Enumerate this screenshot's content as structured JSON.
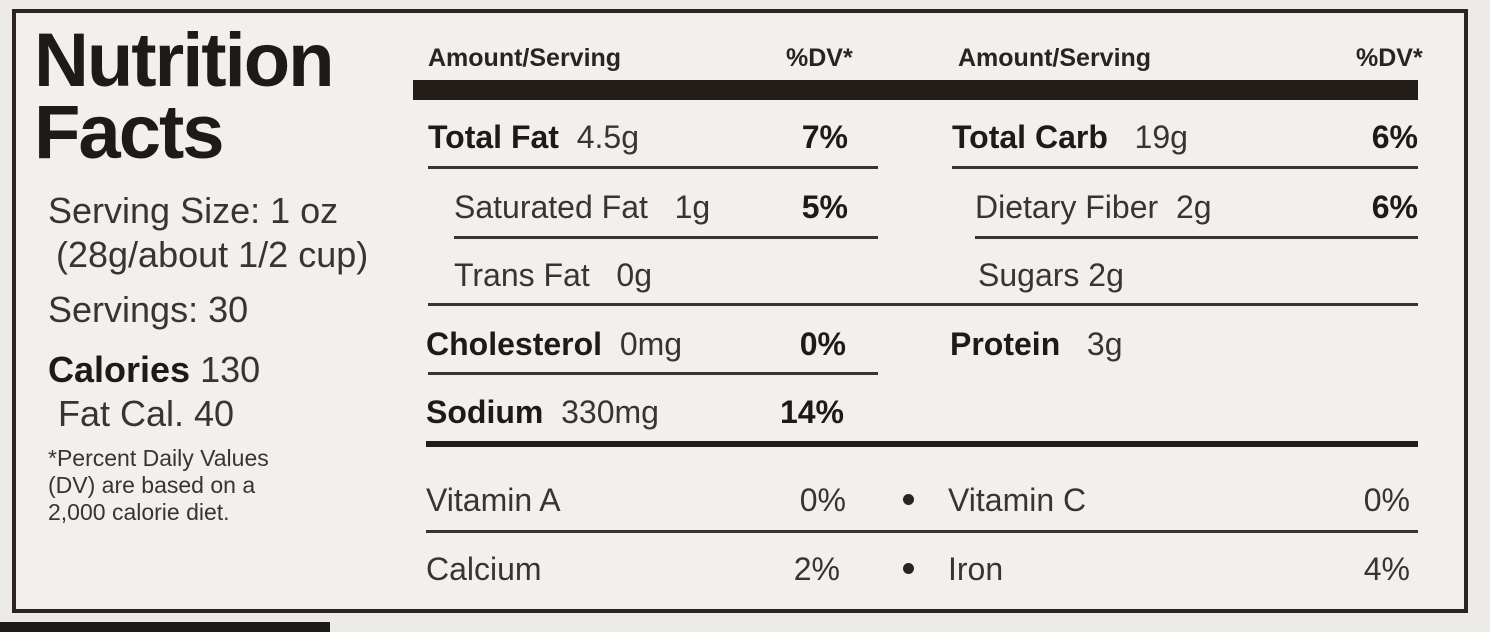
{
  "title_line1": "Nutrition",
  "title_line2": "Facts",
  "serving_size_line1": "Serving Size:  1 oz",
  "serving_size_line2": "(28g/about 1/2 cup)",
  "servings": "Servings: 30",
  "calories_label": "Calories",
  "calories_value": "130",
  "fat_cal": "Fat Cal.  40",
  "footnote": [
    "*Percent Daily Values",
    "(DV) are based on a",
    "2,000 calorie diet."
  ],
  "header": {
    "amount_left": "Amount/Serving",
    "dv_left": "%DV*",
    "amount_right": "Amount/Serving",
    "dv_right": "%DV*"
  },
  "left_nutrients": [
    {
      "name": "Total Fat",
      "amount": "4.5g",
      "dv": "7%"
    },
    {
      "name": "Saturated Fat",
      "amount": "1g",
      "dv": "5%"
    },
    {
      "name": "Trans Fat",
      "amount": "0g",
      "dv": ""
    },
    {
      "name": "Cholesterol",
      "amount": "0mg",
      "dv": "0%"
    },
    {
      "name": "Sodium",
      "amount": "330mg",
      "dv": "14%"
    }
  ],
  "right_nutrients": [
    {
      "name": "Total Carb",
      "amount": "19g",
      "dv": "6%"
    },
    {
      "name": "Dietary Fiber",
      "amount": "2g",
      "dv": "6%"
    },
    {
      "name": "Sugars",
      "amount": "2g",
      "dv": ""
    },
    {
      "name": "Protein",
      "amount": "3g",
      "dv": ""
    }
  ],
  "vitamins": [
    {
      "name": "Vitamin A",
      "dv": "0%"
    },
    {
      "name": "Vitamin C",
      "dv": "0%"
    },
    {
      "name": "Calcium",
      "dv": "2%"
    },
    {
      "name": "Iron",
      "dv": "4%"
    }
  ],
  "colors": {
    "ink": "#231d1a",
    "paper": "#f1f0ed"
  }
}
